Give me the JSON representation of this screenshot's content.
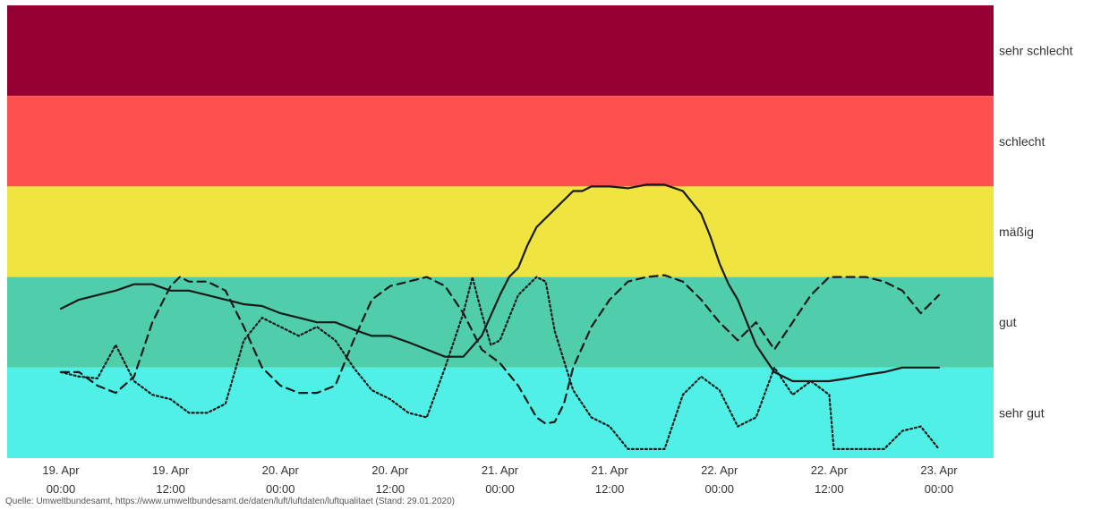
{
  "chart_data": {
    "type": "line",
    "bands": [
      {
        "label": "sehr schlecht",
        "from": 4,
        "to": 5,
        "color": "#930031"
      },
      {
        "label": "schlecht",
        "from": 3,
        "to": 4,
        "color": "#ff5050"
      },
      {
        "label": "mäßig",
        "from": 2,
        "to": 3,
        "color": "#f0e540"
      },
      {
        "label": "gut",
        "from": 1,
        "to": 2,
        "color": "#50cdaa"
      },
      {
        "label": "sehr gut",
        "from": 0,
        "to": 1,
        "color": "#50f0e6"
      }
    ],
    "ylim": [
      0,
      5
    ],
    "xlim": [
      0,
      96
    ],
    "ticks": [
      {
        "x": 0,
        "date": "19. Apr",
        "time": "00:00"
      },
      {
        "x": 12,
        "date": "19. Apr",
        "time": "12:00"
      },
      {
        "x": 24,
        "date": "20. Apr",
        "time": "00:00"
      },
      {
        "x": 36,
        "date": "20. Apr",
        "time": "12:00"
      },
      {
        "x": 48,
        "date": "21. Apr",
        "time": "00:00"
      },
      {
        "x": 60,
        "date": "21. Apr",
        "time": "12:00"
      },
      {
        "x": 72,
        "date": "22. Apr",
        "time": "00:00"
      },
      {
        "x": 84,
        "date": "22. Apr",
        "time": "12:00"
      },
      {
        "x": 96,
        "date": "23. Apr",
        "time": "00:00"
      }
    ],
    "series": [
      {
        "style": "solid",
        "x": [
          0,
          2,
          4,
          6,
          8,
          10,
          12,
          14,
          16,
          18,
          20,
          22,
          24,
          26,
          28,
          30,
          32,
          34,
          36,
          38,
          40,
          42,
          44,
          46,
          48,
          49,
          50,
          51,
          52,
          54,
          56,
          57,
          58,
          60,
          62,
          64,
          66,
          68,
          70,
          71,
          72,
          73,
          74,
          75,
          76,
          78,
          80,
          82,
          84,
          86,
          88,
          90,
          92,
          94,
          96
        ],
        "y": [
          1.65,
          1.75,
          1.8,
          1.85,
          1.92,
          1.92,
          1.85,
          1.85,
          1.8,
          1.75,
          1.7,
          1.68,
          1.6,
          1.55,
          1.5,
          1.5,
          1.42,
          1.35,
          1.35,
          1.28,
          1.2,
          1.12,
          1.12,
          1.35,
          1.8,
          2.0,
          2.1,
          2.35,
          2.55,
          2.75,
          2.95,
          2.95,
          3.0,
          3.0,
          2.98,
          3.02,
          3.02,
          2.95,
          2.7,
          2.45,
          2.15,
          1.92,
          1.75,
          1.5,
          1.25,
          0.95,
          0.85,
          0.85,
          0.85,
          0.88,
          0.92,
          0.95,
          1.0,
          1.0,
          1.0
        ]
      },
      {
        "style": "dashed",
        "x": [
          0,
          2,
          4,
          6,
          8,
          10,
          12,
          13,
          14,
          16,
          18,
          20,
          22,
          24,
          26,
          28,
          30,
          32,
          34,
          36,
          38,
          40,
          42,
          44,
          46,
          48,
          50,
          52,
          53,
          54,
          55,
          56,
          58,
          60,
          62,
          64,
          66,
          68,
          70,
          72,
          74,
          76,
          78,
          80,
          82,
          84,
          86,
          88,
          90,
          92,
          94,
          96
        ],
        "y": [
          0.95,
          0.95,
          0.8,
          0.72,
          0.9,
          1.5,
          1.9,
          2.0,
          1.95,
          1.95,
          1.85,
          1.45,
          1.0,
          0.8,
          0.72,
          0.72,
          0.8,
          1.3,
          1.75,
          1.9,
          1.95,
          2.0,
          1.9,
          1.6,
          1.2,
          1.05,
          0.8,
          0.45,
          0.38,
          0.4,
          0.6,
          1.0,
          1.45,
          1.75,
          1.95,
          2.0,
          2.02,
          1.95,
          1.75,
          1.5,
          1.3,
          1.5,
          1.2,
          1.5,
          1.8,
          2.0,
          2.0,
          2.0,
          1.95,
          1.85,
          1.6,
          1.8
        ]
      },
      {
        "style": "dotted",
        "x": [
          0,
          2,
          4,
          6,
          8,
          10,
          12,
          14,
          16,
          18,
          20,
          22,
          24,
          26,
          28,
          30,
          32,
          34,
          36,
          38,
          40,
          42,
          44,
          45,
          46,
          47,
          48,
          50,
          52,
          53,
          54,
          56,
          58,
          60,
          62,
          64,
          66,
          68,
          70,
          72,
          74,
          76,
          78,
          80,
          82,
          84,
          84.5,
          86,
          88,
          90,
          92,
          94,
          96
        ],
        "y": [
          0.95,
          0.9,
          0.88,
          1.25,
          0.85,
          0.7,
          0.65,
          0.5,
          0.5,
          0.6,
          1.3,
          1.55,
          1.45,
          1.35,
          1.45,
          1.3,
          1.0,
          0.75,
          0.65,
          0.5,
          0.45,
          1.0,
          1.6,
          2.0,
          1.6,
          1.25,
          1.3,
          1.8,
          2.0,
          1.95,
          1.4,
          0.75,
          0.45,
          0.35,
          0.1,
          0.1,
          0.1,
          0.7,
          0.9,
          0.75,
          0.35,
          0.45,
          1.0,
          0.7,
          0.85,
          0.7,
          0.1,
          0.1,
          0.1,
          0.1,
          0.3,
          0.35,
          0.1
        ]
      }
    ],
    "source_text": "Quelle: Umweltbundesamt, https://www.umweltbundesamt.de/daten/luft/luftdaten/luftqualitaet (Stand: 29.01.2020)"
  }
}
